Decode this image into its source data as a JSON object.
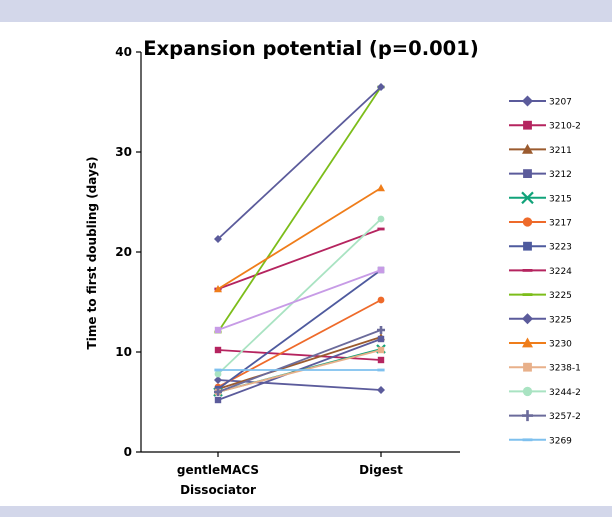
{
  "chart_data": {
    "type": "line",
    "title": "Expansion potential (p=0.001)",
    "ylabel": "Time to first doubling (days)",
    "xlabel": "",
    "categories": [
      [
        "gentleMACS",
        "Dissociator"
      ],
      [
        "Digest"
      ]
    ],
    "ylim": [
      0,
      40
    ],
    "yticks": [
      0,
      10,
      20,
      30,
      40
    ],
    "grid": false,
    "legend_position": "right",
    "series": [
      {
        "name": "3207",
        "color": "#5b5b9b",
        "marker": "diamond",
        "values": [
          7.2,
          6.2
        ]
      },
      {
        "name": "3210-2",
        "color": "#b5245f",
        "marker": "square",
        "values": [
          10.2,
          9.2
        ]
      },
      {
        "name": "3211",
        "color": "#9b5b2f",
        "marker": "triangle",
        "values": [
          6.3,
          11.5
        ]
      },
      {
        "name": "3212",
        "color": "#5b5b9b",
        "marker": "square",
        "values": [
          5.2,
          11.3
        ]
      },
      {
        "name": "3215",
        "color": "#11a37a",
        "marker": "x",
        "values": [
          6.0,
          10.3
        ]
      },
      {
        "name": "3217",
        "color": "#ee6a2a",
        "marker": "circle",
        "values": [
          6.5,
          15.2
        ]
      },
      {
        "name": "3223",
        "color": "#4e5a9e",
        "marker": "square",
        "values": [
          6.3,
          18.2
        ]
      },
      {
        "name": "3224",
        "color": "#b5245f",
        "marker": "dash",
        "values": [
          16.3,
          22.3
        ]
      },
      {
        "name": "3225",
        "color": "#7cbd1a",
        "marker": "dash",
        "values": [
          12.0,
          36.5
        ]
      },
      {
        "name": "3225",
        "color": "#5b5b9b",
        "marker": "diamond",
        "values": [
          21.3,
          36.5
        ]
      },
      {
        "name": "3230",
        "color": "#ef7d1a",
        "marker": "triangle",
        "values": [
          16.3,
          26.4
        ]
      },
      {
        "name": "3238-1",
        "color": "#e8b08a",
        "marker": "square",
        "values": [
          6.0,
          10.2
        ]
      },
      {
        "name": "3244-2",
        "color": "#a9e3c2",
        "marker": "circle",
        "values": [
          7.8,
          23.3
        ]
      },
      {
        "name": "3257-2",
        "color": "#6b6b9b",
        "marker": "plus",
        "values": [
          6.0,
          12.2
        ]
      },
      {
        "name": "3269",
        "color": "#7ec0ee",
        "marker": "dash",
        "values": [
          8.2,
          8.2
        ]
      },
      {
        "name": "",
        "color": "#c79be6",
        "marker": "square",
        "values": [
          12.2,
          18.2
        ]
      }
    ]
  }
}
